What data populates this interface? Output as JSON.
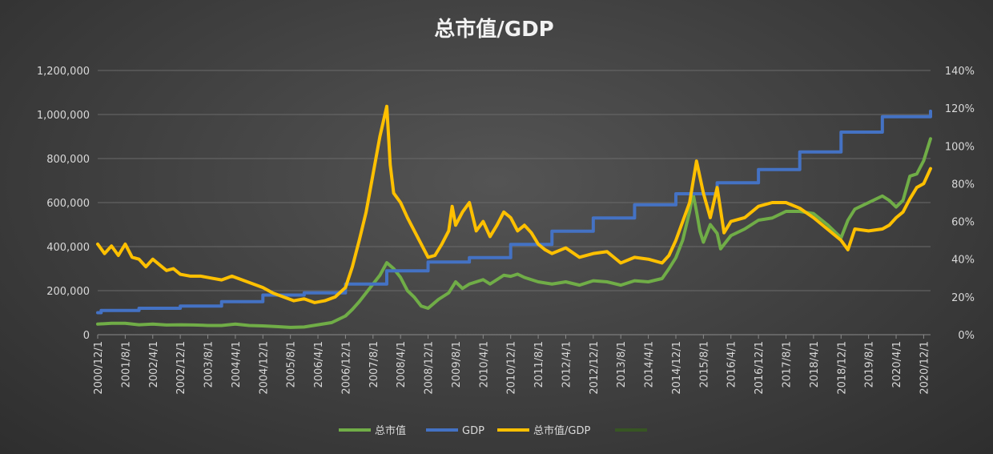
{
  "chart_data": {
    "type": "line",
    "title": "总市值/GDP",
    "x_tick_labels": [
      "2000/12/1",
      "2001/8/1",
      "2002/4/1",
      "2002/12/1",
      "2003/8/1",
      "2004/4/1",
      "2004/12/1",
      "2005/8/1",
      "2006/4/1",
      "2006/12/1",
      "2007/8/1",
      "2008/4/1",
      "2008/12/1",
      "2009/8/1",
      "2010/4/1",
      "2010/12/1",
      "2011/8/1",
      "2012/4/1",
      "2012/12/1",
      "2013/8/1",
      "2014/4/1",
      "2014/12/1",
      "2015/8/1",
      "2016/4/1",
      "2016/12/1",
      "2017/8/1",
      "2018/4/1",
      "2018/12/1",
      "2019/8/1",
      "2020/4/1",
      "2020/12/1"
    ],
    "y_left": {
      "ylim": [
        0,
        1200000
      ],
      "ticks": [
        "0",
        "200,000",
        "400,000",
        "600,000",
        "800,000",
        "1,000,000",
        "1,200,000"
      ]
    },
    "y_right": {
      "ylim": [
        0,
        1.4
      ],
      "ticks": [
        "0%",
        "20%",
        "40%",
        "60%",
        "80%",
        "100%",
        "120%",
        "140%"
      ]
    },
    "legend": {
      "position": "bottom"
    },
    "grid": true,
    "colors": {
      "market_cap": "#70ad47",
      "gdp": "#4472c4",
      "ratio": "#ffc000",
      "extra": "#375623"
    },
    "series": [
      {
        "name": "总市值",
        "axis": "left",
        "x": [
          "2000/12",
          "2001/4",
          "2001/8",
          "2001/12",
          "2002/4",
          "2002/8",
          "2002/12",
          "2003/4",
          "2003/8",
          "2003/12",
          "2004/4",
          "2004/8",
          "2004/12",
          "2005/4",
          "2005/8",
          "2005/12",
          "2006/4",
          "2006/8",
          "2006/12",
          "2007/2",
          "2007/4",
          "2007/6",
          "2007/8",
          "2007/10",
          "2007/12",
          "2008/2",
          "2008/4",
          "2008/6",
          "2008/8",
          "2008/10",
          "2008/12",
          "2009/3",
          "2009/6",
          "2009/8",
          "2009/10",
          "2009/12",
          "2010/2",
          "2010/4",
          "2010/6",
          "2010/8",
          "2010/10",
          "2010/12",
          "2011/2",
          "2011/4",
          "2011/8",
          "2011/12",
          "2012/4",
          "2012/8",
          "2012/12",
          "2013/4",
          "2013/8",
          "2013/12",
          "2014/4",
          "2014/8",
          "2014/10",
          "2014/12",
          "2015/2",
          "2015/4",
          "2015/5",
          "2015/6",
          "2015/7",
          "2015/8",
          "2015/10",
          "2015/12",
          "2016/1",
          "2016/2",
          "2016/4",
          "2016/8",
          "2016/12",
          "2017/4",
          "2017/8",
          "2017/12",
          "2018/4",
          "2018/8",
          "2018/12",
          "2019/2",
          "2019/4",
          "2019/8",
          "2019/12",
          "2020/2",
          "2020/4",
          "2020/6",
          "2020/8",
          "2020/10",
          "2020/12",
          "2021/2"
        ],
        "values": [
          48000,
          52000,
          52000,
          45000,
          48000,
          44000,
          45000,
          44000,
          42000,
          42000,
          48000,
          42000,
          40000,
          37000,
          33000,
          35000,
          45000,
          55000,
          85000,
          115000,
          150000,
          190000,
          230000,
          270000,
          327000,
          300000,
          260000,
          200000,
          170000,
          130000,
          120000,
          160000,
          190000,
          240000,
          210000,
          230000,
          240000,
          250000,
          230000,
          250000,
          270000,
          265000,
          275000,
          260000,
          240000,
          230000,
          240000,
          225000,
          245000,
          240000,
          225000,
          245000,
          240000,
          255000,
          300000,
          350000,
          430000,
          560000,
          640000,
          560000,
          470000,
          420000,
          500000,
          460000,
          390000,
          410000,
          450000,
          480000,
          520000,
          530000,
          560000,
          560000,
          550000,
          500000,
          440000,
          520000,
          570000,
          600000,
          630000,
          610000,
          580000,
          610000,
          720000,
          730000,
          790000,
          890000
        ]
      },
      {
        "name": "GDP",
        "axis": "left",
        "x": [
          "2000/12",
          "2001/1",
          "2001/12",
          "2002/12",
          "2003/12",
          "2004/12",
          "2005/12",
          "2006/12",
          "2007/12",
          "2008/12",
          "2009/12",
          "2010/12",
          "2011/12",
          "2012/12",
          "2013/12",
          "2014/12",
          "2015/12",
          "2016/12",
          "2017/12",
          "2018/12",
          "2019/12",
          "2021/2"
        ],
        "values": [
          100000,
          110000,
          120000,
          130000,
          150000,
          180000,
          190000,
          230000,
          290000,
          330000,
          350000,
          410000,
          470000,
          530000,
          590000,
          640000,
          690000,
          750000,
          830000,
          920000,
          990000,
          1015000
        ]
      },
      {
        "name": "总市值/GDP",
        "axis": "right",
        "x": [
          "2000/12",
          "2001/2",
          "2001/4",
          "2001/6",
          "2001/8",
          "2001/10",
          "2001/12",
          "2002/2",
          "2002/4",
          "2002/6",
          "2002/8",
          "2002/10",
          "2002/12",
          "2003/3",
          "2003/6",
          "2003/9",
          "2003/12",
          "2004/3",
          "2004/6",
          "2004/9",
          "2004/12",
          "2005/3",
          "2005/6",
          "2005/9",
          "2005/12",
          "2006/3",
          "2006/6",
          "2006/9",
          "2006/12",
          "2007/2",
          "2007/4",
          "2007/6",
          "2007/8",
          "2007/10",
          "2007/12",
          "2008/1",
          "2008/2",
          "2008/4",
          "2008/6",
          "2008/8",
          "2008/10",
          "2008/12",
          "2009/2",
          "2009/4",
          "2009/6",
          "2009/7",
          "2009/8",
          "2009/10",
          "2009/12",
          "2010/2",
          "2010/4",
          "2010/6",
          "2010/8",
          "2010/10",
          "2010/12",
          "2011/2",
          "2011/4",
          "2011/6",
          "2011/8",
          "2011/10",
          "2011/12",
          "2012/4",
          "2012/8",
          "2012/12",
          "2013/4",
          "2013/8",
          "2013/12",
          "2014/4",
          "2014/8",
          "2014/10",
          "2014/12",
          "2015/2",
          "2015/4",
          "2015/6",
          "2015/8",
          "2015/10",
          "2015/12",
          "2016/2",
          "2016/4",
          "2016/8",
          "2016/12",
          "2017/4",
          "2017/8",
          "2017/12",
          "2018/4",
          "2018/8",
          "2018/12",
          "2019/2",
          "2019/4",
          "2019/8",
          "2019/12",
          "2020/2",
          "2020/4",
          "2020/6",
          "2020/8",
          "2020/10",
          "2020/12",
          "2021/2"
        ],
        "values": [
          0.48,
          0.43,
          0.47,
          0.42,
          0.48,
          0.41,
          0.4,
          0.36,
          0.4,
          0.37,
          0.34,
          0.35,
          0.32,
          0.31,
          0.31,
          0.3,
          0.29,
          0.31,
          0.29,
          0.27,
          0.25,
          0.22,
          0.2,
          0.18,
          0.19,
          0.17,
          0.18,
          0.2,
          0.25,
          0.36,
          0.5,
          0.65,
          0.85,
          1.05,
          1.21,
          0.9,
          0.75,
          0.7,
          0.62,
          0.55,
          0.48,
          0.41,
          0.42,
          0.48,
          0.55,
          0.68,
          0.58,
          0.65,
          0.7,
          0.55,
          0.6,
          0.52,
          0.58,
          0.65,
          0.62,
          0.55,
          0.58,
          0.54,
          0.48,
          0.45,
          0.43,
          0.46,
          0.41,
          0.43,
          0.44,
          0.38,
          0.41,
          0.4,
          0.38,
          0.42,
          0.5,
          0.6,
          0.7,
          0.92,
          0.75,
          0.62,
          0.78,
          0.54,
          0.6,
          0.62,
          0.68,
          0.7,
          0.7,
          0.67,
          0.62,
          0.56,
          0.5,
          0.45,
          0.56,
          0.55,
          0.56,
          0.58,
          0.62,
          0.65,
          0.72,
          0.78,
          0.8,
          0.88
        ]
      },
      {
        "name": "",
        "axis": "left",
        "x": [],
        "values": []
      }
    ]
  }
}
